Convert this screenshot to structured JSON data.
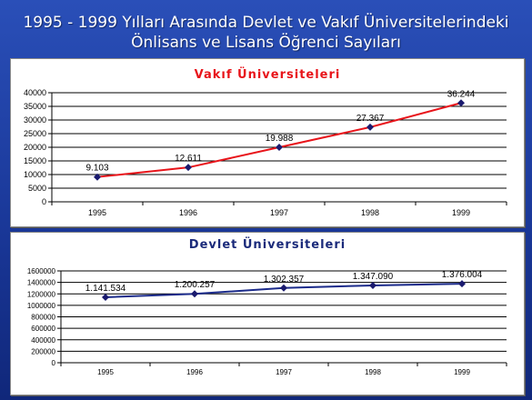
{
  "page": {
    "title_line1": "1995 - 1999 Yılları Arasında Devlet ve Vakıf Üniversitelerindeki",
    "title_line2": "Önlisans ve Lisans Öğrenci Sayıları"
  },
  "colors": {
    "background": "#1a3899",
    "vakif_title": "#e8141a",
    "vakif_line": "#e8141a",
    "devlet_title": "#1a2a7a",
    "devlet_line": "#1a2a8a",
    "marker": "#1a1a6e"
  },
  "chart_data": [
    {
      "type": "line",
      "title": "Vakıf Üniversiteleri",
      "xlabel": "",
      "ylabel": "",
      "categories": [
        "1995",
        "1996",
        "1997",
        "1998",
        "1999"
      ],
      "values": [
        9103,
        12611,
        19988,
        27367,
        36244
      ],
      "data_labels": [
        "9.103",
        "12.611",
        "19.988",
        "27.367",
        "36.244"
      ],
      "ylim": [
        0,
        40000
      ],
      "yticks": [
        0,
        5000,
        10000,
        15000,
        20000,
        25000,
        30000,
        35000,
        40000
      ],
      "ytick_labels": [
        "0",
        "5000",
        "10000",
        "15000",
        "20000",
        "25000",
        "30000",
        "35000",
        "40000"
      ],
      "grid": true,
      "legend": "none"
    },
    {
      "type": "line",
      "title": "Devlet Üniversiteleri",
      "xlabel": "",
      "ylabel": "",
      "categories": [
        "1995",
        "1996",
        "1997",
        "1998",
        "1999"
      ],
      "values": [
        1141534,
        1200257,
        1302357,
        1347090,
        1376004
      ],
      "data_labels": [
        "1.141.534",
        "1.200.257",
        "1.302.357",
        "1.347.090",
        "1.376.004"
      ],
      "ylim": [
        0,
        1600000
      ],
      "yticks": [
        0,
        200000,
        400000,
        600000,
        800000,
        1000000,
        1200000,
        1400000,
        1600000
      ],
      "ytick_labels": [
        "0",
        "200000",
        "400000",
        "600000",
        "800000",
        "1000000",
        "1200000",
        "1400000",
        "1600000"
      ],
      "grid": true,
      "legend": "none"
    }
  ]
}
